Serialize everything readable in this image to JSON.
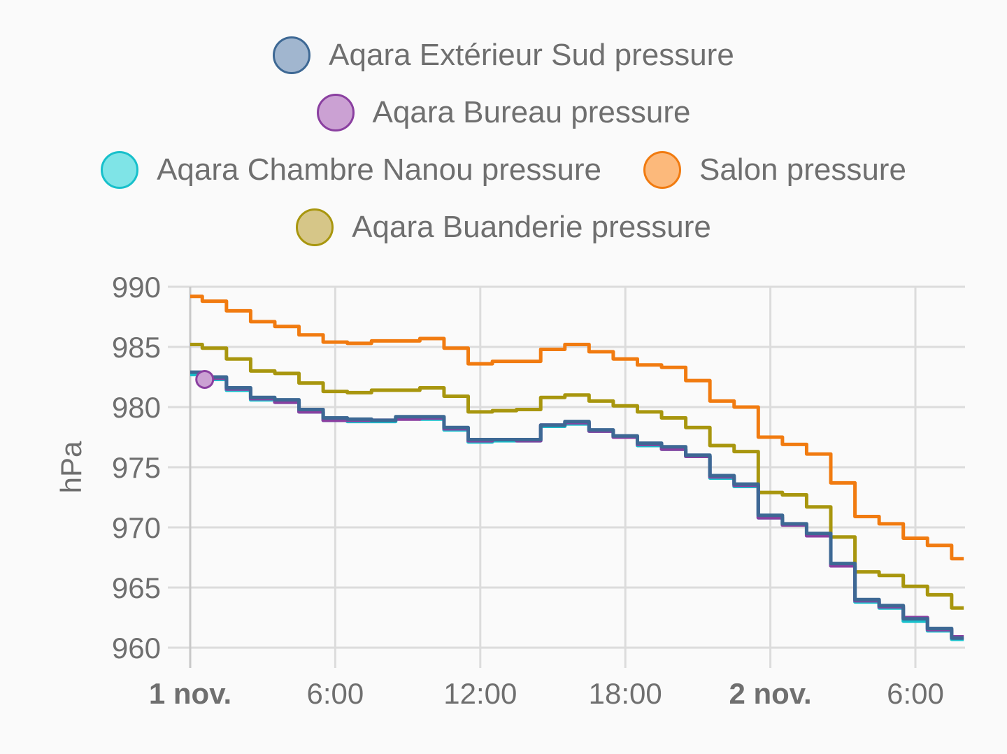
{
  "chart_data": {
    "type": "line",
    "ylabel": "hPa",
    "ylim": [
      960,
      990
    ],
    "yticks": [
      "990",
      "985",
      "980",
      "975",
      "970",
      "965",
      "960"
    ],
    "xlim_hours": [
      0,
      32
    ],
    "xticks": [
      {
        "label": "1 nov.",
        "hour": 0,
        "bold": true
      },
      {
        "label": "6:00",
        "hour": 6,
        "bold": false
      },
      {
        "label": "12:00",
        "hour": 12,
        "bold": false
      },
      {
        "label": "18:00",
        "hour": 18,
        "bold": false
      },
      {
        "label": "2 nov.",
        "hour": 24,
        "bold": true
      },
      {
        "label": "6:00",
        "hour": 30,
        "bold": false
      }
    ],
    "grid": true,
    "legend_position": "top",
    "legend_rows": [
      [
        0
      ],
      [
        1
      ],
      [
        2,
        3
      ],
      [
        4
      ]
    ],
    "series": [
      {
        "name": "Aqara Extérieur Sud pressure",
        "color": "#3d6894",
        "fill": "#a1b6cf",
        "points": [
          [
            0,
            982.9
          ],
          [
            1,
            982.5
          ],
          [
            2,
            981.6
          ],
          [
            3,
            980.8
          ],
          [
            4,
            980.6
          ],
          [
            5,
            979.8
          ],
          [
            6,
            979.1
          ],
          [
            7,
            979.0
          ],
          [
            8,
            978.9
          ],
          [
            9,
            979.2
          ],
          [
            10,
            979.2
          ],
          [
            11,
            978.3
          ],
          [
            12,
            977.3
          ],
          [
            13,
            977.3
          ],
          [
            14,
            977.3
          ],
          [
            15,
            978.5
          ],
          [
            16,
            978.8
          ],
          [
            17,
            978.1
          ],
          [
            18,
            977.6
          ],
          [
            19,
            977.0
          ],
          [
            20,
            976.7
          ],
          [
            21,
            976.0
          ],
          [
            22,
            974.3
          ],
          [
            23,
            973.6
          ],
          [
            24,
            971.0
          ],
          [
            25,
            970.3
          ],
          [
            26,
            969.5
          ],
          [
            27,
            967.0
          ],
          [
            28,
            964.0
          ],
          [
            29,
            963.5
          ],
          [
            30,
            962.4
          ],
          [
            31,
            961.6
          ],
          [
            32,
            960.8
          ]
        ]
      },
      {
        "name": "Aqara Bureau pressure",
        "color": "#8a3fa0",
        "fill": "#cba1d3",
        "points": [
          [
            0.6,
            982.3
          ],
          [
            1,
            982.4
          ],
          [
            2,
            981.5
          ],
          [
            3,
            980.7
          ],
          [
            4,
            980.4
          ],
          [
            5,
            979.6
          ],
          [
            6,
            978.9
          ],
          [
            7,
            978.9
          ],
          [
            8,
            978.9
          ],
          [
            9,
            979.0
          ],
          [
            10,
            979.1
          ],
          [
            11,
            978.2
          ],
          [
            12,
            977.2
          ],
          [
            13,
            977.3
          ],
          [
            14,
            977.2
          ],
          [
            15,
            978.5
          ],
          [
            16,
            978.7
          ],
          [
            17,
            978.0
          ],
          [
            18,
            977.5
          ],
          [
            19,
            976.9
          ],
          [
            20,
            976.5
          ],
          [
            21,
            975.9
          ],
          [
            22,
            974.2
          ],
          [
            23,
            973.5
          ],
          [
            24,
            970.8
          ],
          [
            25,
            970.2
          ],
          [
            26,
            969.3
          ],
          [
            27,
            966.8
          ],
          [
            28,
            963.9
          ],
          [
            29,
            963.4
          ],
          [
            30,
            962.5
          ],
          [
            31,
            961.5
          ],
          [
            32,
            960.9
          ]
        ]
      },
      {
        "name": "Aqara Chambre Nanou pressure",
        "color": "#17c0cb",
        "fill": "#7fe4e7",
        "points": [
          [
            0,
            982.7
          ],
          [
            1,
            982.3
          ],
          [
            2,
            981.4
          ],
          [
            3,
            980.6
          ],
          [
            4,
            980.4
          ],
          [
            5,
            979.6
          ],
          [
            6,
            978.9
          ],
          [
            7,
            978.8
          ],
          [
            8,
            978.8
          ],
          [
            9,
            979.1
          ],
          [
            10,
            979.0
          ],
          [
            11,
            978.1
          ],
          [
            12,
            977.1
          ],
          [
            13,
            977.2
          ],
          [
            14,
            977.2
          ],
          [
            15,
            978.4
          ],
          [
            16,
            978.6
          ],
          [
            17,
            978.0
          ],
          [
            18,
            977.5
          ],
          [
            19,
            976.8
          ],
          [
            20,
            976.5
          ],
          [
            21,
            975.9
          ],
          [
            22,
            974.1
          ],
          [
            23,
            973.4
          ],
          [
            24,
            970.8
          ],
          [
            25,
            970.2
          ],
          [
            26,
            969.3
          ],
          [
            27,
            966.8
          ],
          [
            28,
            963.8
          ],
          [
            29,
            963.3
          ],
          [
            30,
            962.2
          ],
          [
            31,
            961.4
          ],
          [
            32,
            960.7
          ]
        ]
      },
      {
        "name": "Salon pressure",
        "color": "#f17b10",
        "fill": "#fcb97b",
        "points": [
          [
            0,
            989.2
          ],
          [
            1,
            988.8
          ],
          [
            2,
            988.0
          ],
          [
            3,
            987.1
          ],
          [
            4,
            986.7
          ],
          [
            5,
            986.0
          ],
          [
            6,
            985.4
          ],
          [
            7,
            985.3
          ],
          [
            8,
            985.5
          ],
          [
            9,
            985.5
          ],
          [
            10,
            985.7
          ],
          [
            11,
            984.9
          ],
          [
            12,
            983.6
          ],
          [
            13,
            983.8
          ],
          [
            14,
            983.8
          ],
          [
            15,
            984.8
          ],
          [
            16,
            985.2
          ],
          [
            17,
            984.6
          ],
          [
            18,
            984.0
          ],
          [
            19,
            983.5
          ],
          [
            20,
            983.3
          ],
          [
            21,
            982.2
          ],
          [
            22,
            980.5
          ],
          [
            23,
            980.0
          ],
          [
            24,
            977.5
          ],
          [
            25,
            976.9
          ],
          [
            26,
            976.1
          ],
          [
            27,
            973.7
          ],
          [
            28,
            970.9
          ],
          [
            29,
            970.3
          ],
          [
            30,
            969.1
          ],
          [
            31,
            968.5
          ],
          [
            32,
            967.4
          ]
        ]
      },
      {
        "name": "Aqara Buanderie pressure",
        "color": "#a8960e",
        "fill": "#d6c688",
        "points": [
          [
            0,
            985.2
          ],
          [
            1,
            984.9
          ],
          [
            2,
            984.0
          ],
          [
            3,
            983.0
          ],
          [
            4,
            982.8
          ],
          [
            5,
            982.0
          ],
          [
            6,
            981.3
          ],
          [
            7,
            981.2
          ],
          [
            8,
            981.4
          ],
          [
            9,
            981.4
          ],
          [
            10,
            981.6
          ],
          [
            11,
            980.9
          ],
          [
            12,
            979.6
          ],
          [
            13,
            979.7
          ],
          [
            14,
            979.8
          ],
          [
            15,
            980.8
          ],
          [
            16,
            981.0
          ],
          [
            17,
            980.5
          ],
          [
            18,
            980.1
          ],
          [
            19,
            979.6
          ],
          [
            20,
            979.1
          ],
          [
            21,
            978.3
          ],
          [
            22,
            976.8
          ],
          [
            23,
            976.3
          ],
          [
            24,
            972.9
          ],
          [
            25,
            972.7
          ],
          [
            26,
            971.7
          ],
          [
            27,
            969.2
          ],
          [
            28,
            966.3
          ],
          [
            29,
            966.0
          ],
          [
            30,
            965.1
          ],
          [
            31,
            964.4
          ],
          [
            32,
            963.3
          ]
        ]
      }
    ]
  }
}
